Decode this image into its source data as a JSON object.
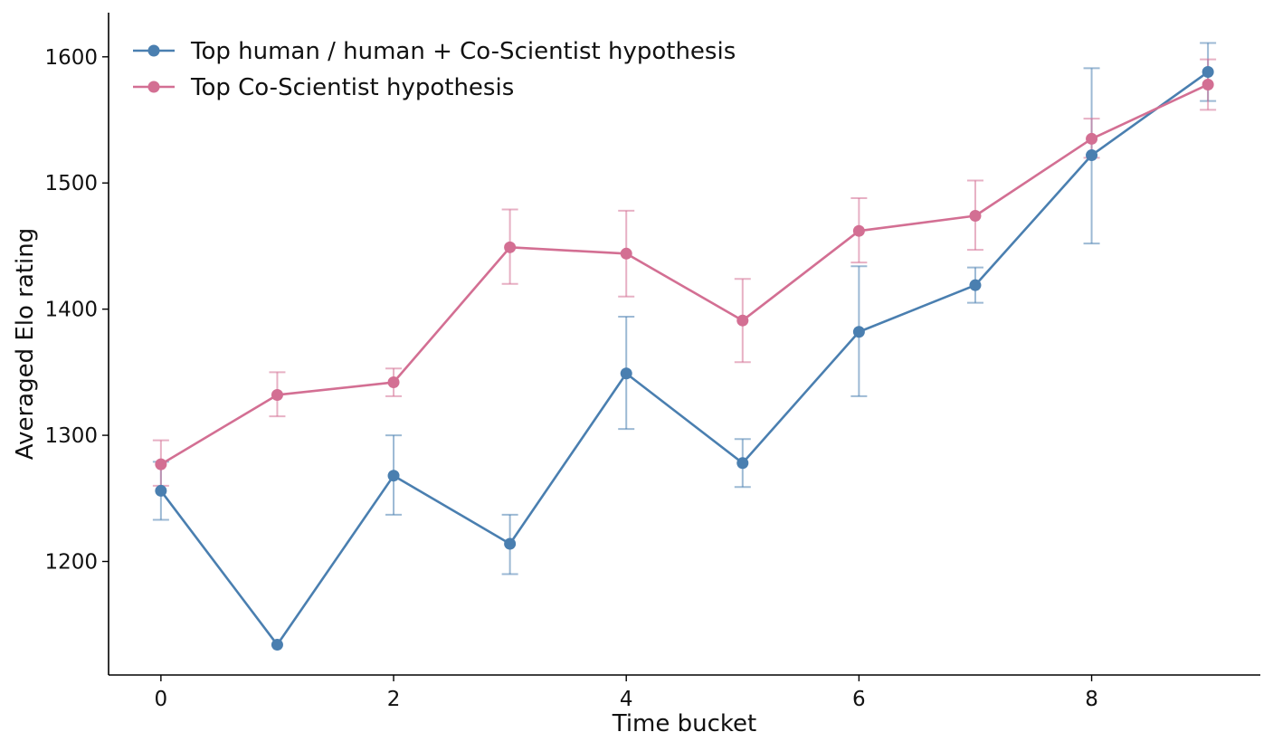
{
  "chart_data": {
    "type": "line",
    "x": [
      0,
      1,
      2,
      3,
      4,
      5,
      6,
      7,
      8,
      9
    ],
    "xlabel": "Time bucket",
    "ylabel": "Averaged Elo rating",
    "xlim": [
      -0.45,
      9.45
    ],
    "ylim": [
      1110,
      1635
    ],
    "xticks": [
      0,
      2,
      4,
      6,
      8
    ],
    "yticks": [
      1200,
      1300,
      1400,
      1500,
      1600
    ],
    "grid": false,
    "legend": "top-left",
    "series": [
      {
        "name": "Top human / human + Co-Scientist hypothesis",
        "color": "#4a7fb0",
        "values": [
          1256,
          1134,
          1268,
          1214,
          1349,
          1278,
          1382,
          1419,
          1522,
          1588
        ],
        "err_low": [
          1233,
          null,
          1237,
          1190,
          1305,
          1259,
          1331,
          1405,
          1452,
          1565
        ],
        "err_high": [
          1279,
          null,
          1300,
          1237,
          1394,
          1297,
          1434,
          1433,
          1591,
          1611
        ]
      },
      {
        "name": "Top Co-Scientist hypothesis",
        "color": "#d36f93",
        "values": [
          1277,
          1332,
          1342,
          1449,
          1444,
          1391,
          1462,
          1474,
          1535,
          1578
        ],
        "err_low": [
          1260,
          1315,
          1331,
          1420,
          1410,
          1358,
          1437,
          1447,
          1520,
          1558
        ],
        "err_high": [
          1296,
          1350,
          1353,
          1479,
          1478,
          1424,
          1488,
          1502,
          1551,
          1598
        ]
      }
    ]
  }
}
